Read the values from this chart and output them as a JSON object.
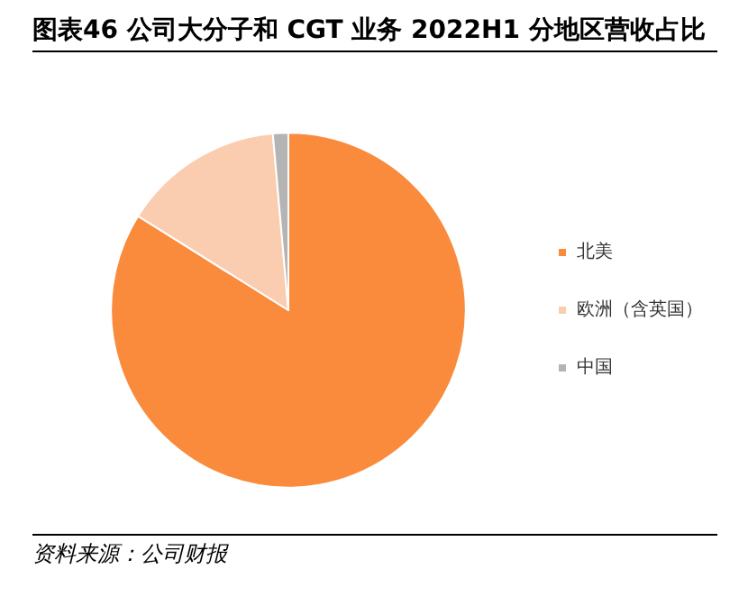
{
  "chart_data": {
    "type": "pie",
    "title": "图表46 公司大分子和 CGT 业务 2022H1 分地区营收占比",
    "categories": [
      "北美",
      "欧洲（含英国）",
      "中国"
    ],
    "values": [
      83.9,
      14.7,
      1.4
    ],
    "colors": [
      "#fa8b3c",
      "#fbcdb0",
      "#b4b4b4"
    ],
    "legend": "right",
    "annotations": [
      "资料来源：公司财报"
    ]
  }
}
